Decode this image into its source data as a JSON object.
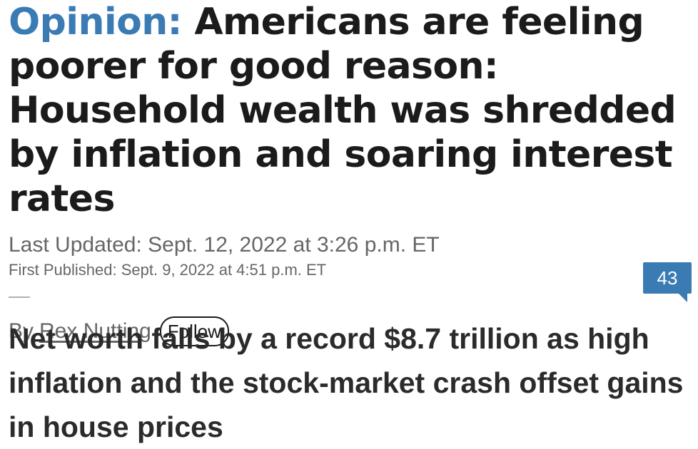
{
  "headline": {
    "kicker": "Opinion:",
    "text": "Americans are feeling poorer for good reason: Household wealth was shredded by inflation and soaring interest rates"
  },
  "timestamps": {
    "last_updated": "Last Updated: Sept. 12, 2022 at 3:26 p.m. ET",
    "first_published": "First Published: Sept. 9, 2022 at 4:51 p.m. ET"
  },
  "byline": {
    "prefix": "By",
    "author": "Rex Nutting",
    "follow_label": "Follow"
  },
  "comments": {
    "count": "43",
    "color": "#3b7bb4"
  },
  "subheadline": "Net worth falls by a record $8.7 trillion as high inflation and the stock-market crash offset gains in house prices"
}
